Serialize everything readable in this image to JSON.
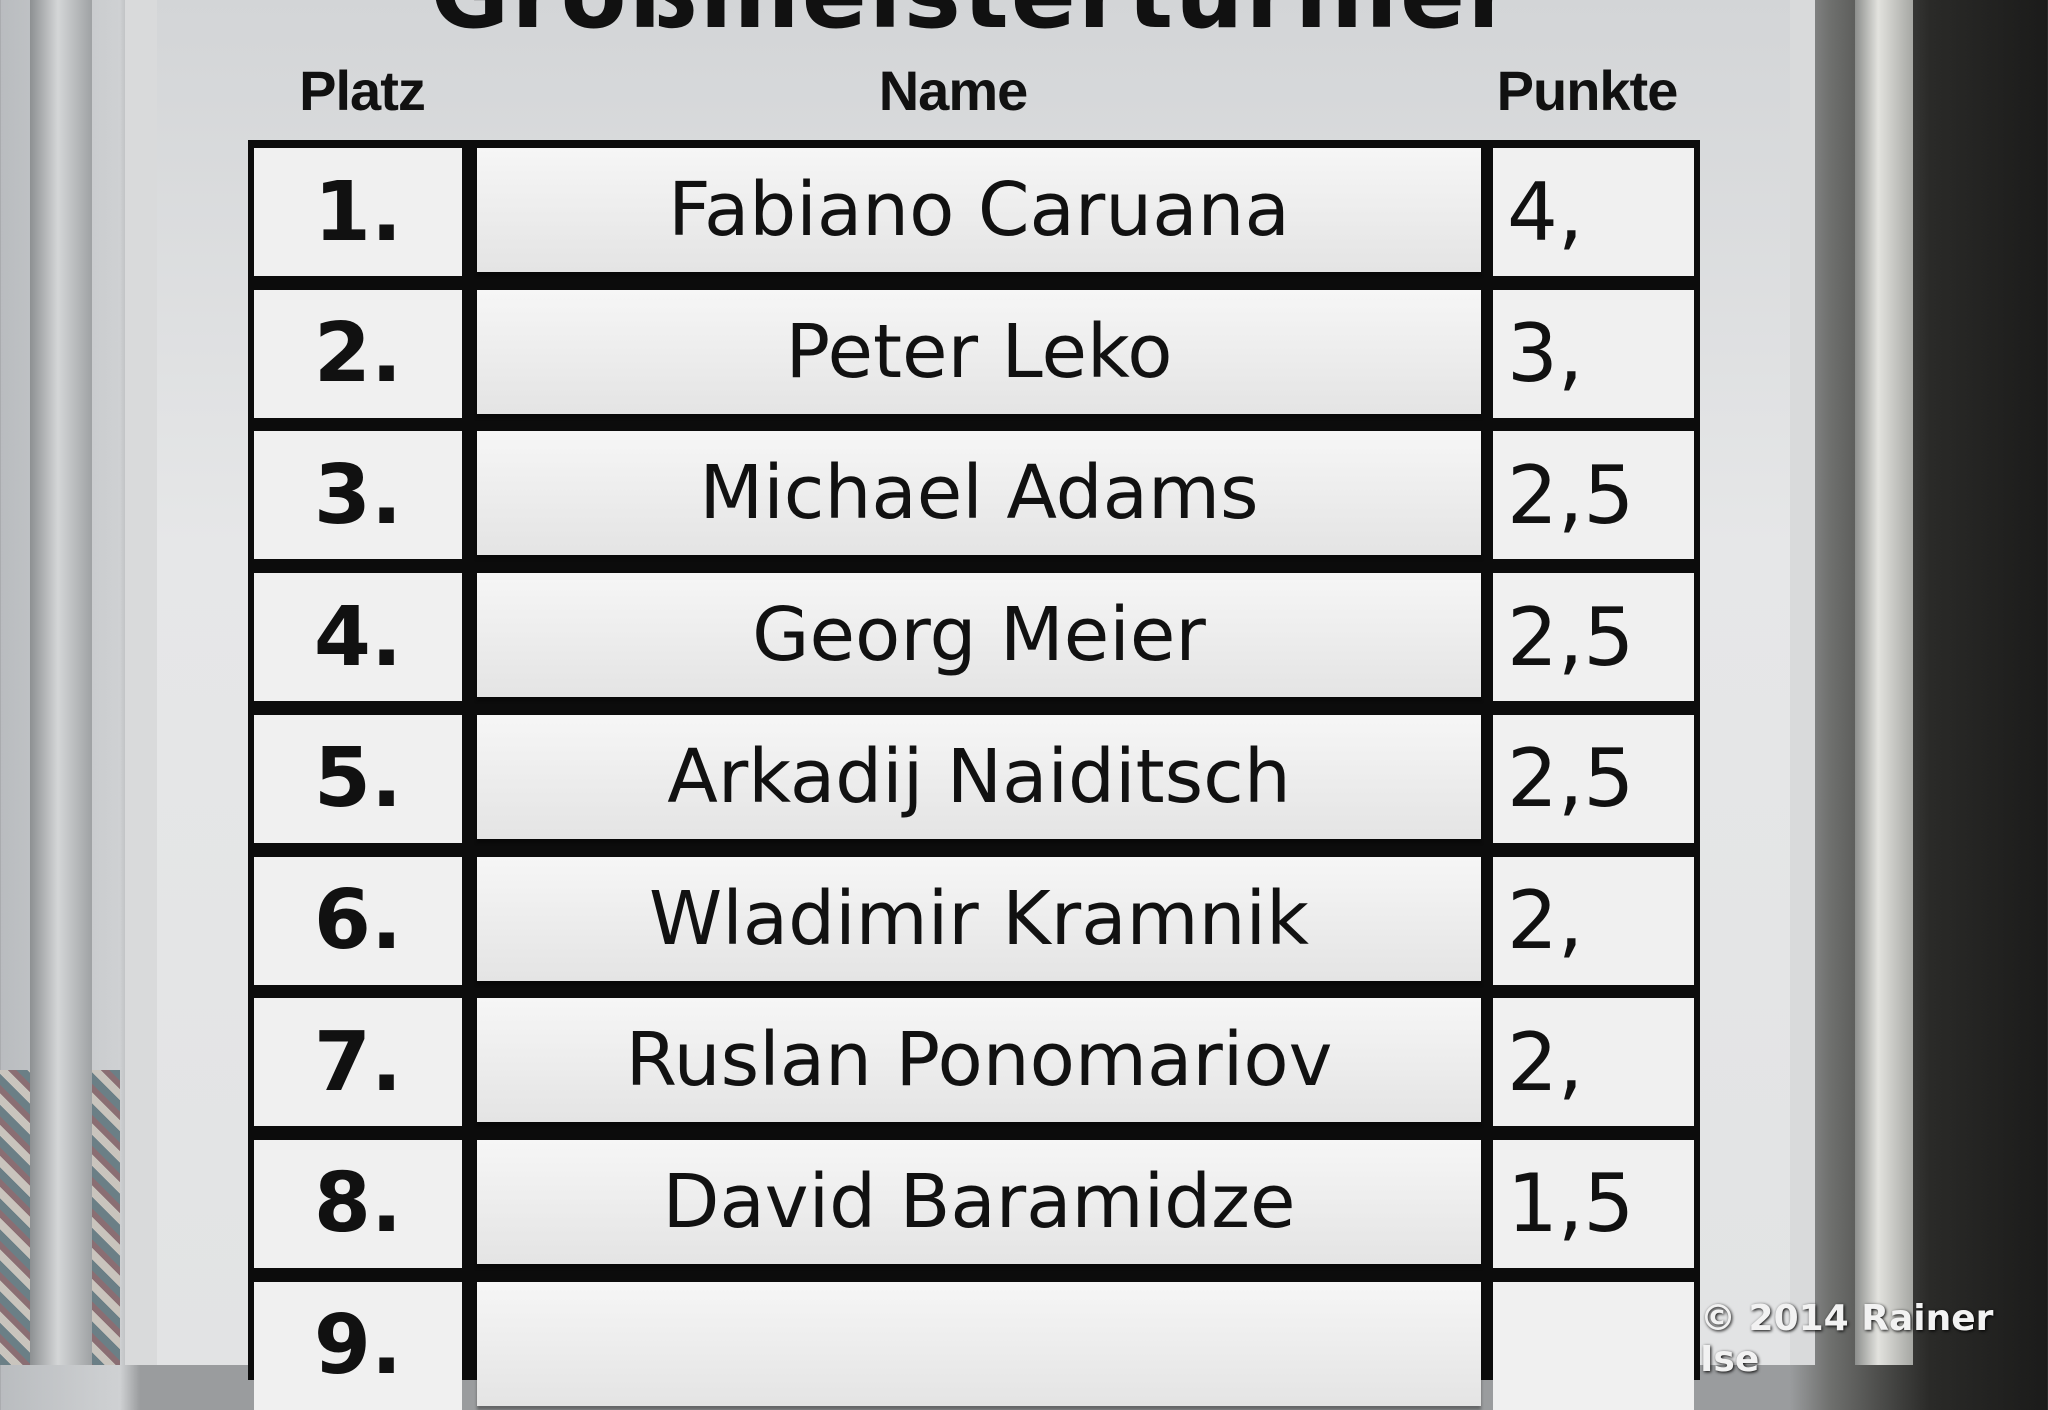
{
  "board": {
    "title": "Großmeisterturnier",
    "headers": {
      "platz": "Platz",
      "name": "Name",
      "punkte": "Punkte"
    },
    "rows": [
      {
        "platz": "1.",
        "name": "Fabiano Caruana",
        "punkte": "4,"
      },
      {
        "platz": "2.",
        "name": "Peter Leko",
        "punkte": "3,"
      },
      {
        "platz": "3.",
        "name": "Michael Adams",
        "punkte": "2,5"
      },
      {
        "platz": "4.",
        "name": "Georg Meier",
        "punkte": "2,5"
      },
      {
        "platz": "5.",
        "name": "Arkadij Naiditsch",
        "punkte": "2,5"
      },
      {
        "platz": "6.",
        "name": "Wladimir Kramnik",
        "punkte": "2,"
      },
      {
        "platz": "7.",
        "name": "Ruslan Ponomariov",
        "punkte": "2,"
      },
      {
        "platz": "8.",
        "name": "David Baramidze",
        "punkte": "1,5"
      },
      {
        "platz": "9.",
        "name": "",
        "punkte": ""
      }
    ]
  },
  "copyright": "© 2014 Rainer Ise"
}
